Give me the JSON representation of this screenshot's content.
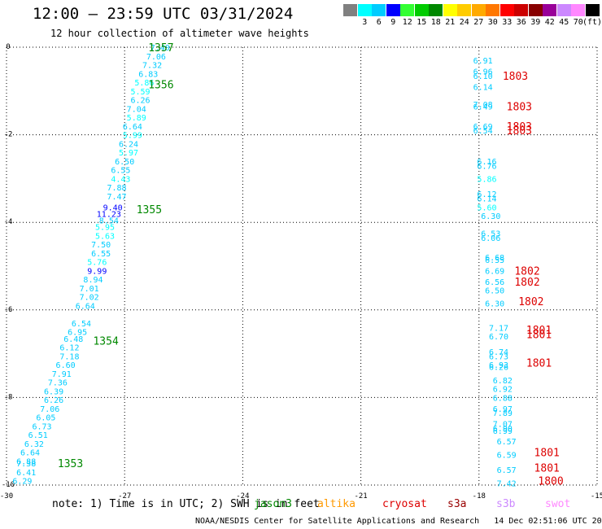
{
  "header": {
    "title": "12:00 – 23:59 UTC 03/31/2024",
    "subtitle": "12 hour collection of altimeter wave heights"
  },
  "color_scale": {
    "labels": [
      "3",
      "6",
      "9",
      "12",
      "15",
      "18",
      "21",
      "24",
      "27",
      "30",
      "33",
      "36",
      "39",
      "42",
      "45",
      "70"
    ],
    "unit": "(ft)",
    "colors": [
      "#808080",
      "#00ffff",
      "#00ccff",
      "#0000ff",
      "#33ff33",
      "#00cc00",
      "#008800",
      "#ffff00",
      "#ffcc00",
      "#ffaa00",
      "#ff7700",
      "#ff0000",
      "#cc0000",
      "#880000",
      "#990099",
      "#cc88ff",
      "#ff88ff",
      "#000000"
    ]
  },
  "axes": {
    "x_ticks": [
      "-30",
      "-27",
      "-24",
      "-21",
      "-18",
      "-15"
    ],
    "y_ticks": [
      "0",
      "-2",
      "-4",
      "-6",
      "-8",
      "-10"
    ]
  },
  "chart_data": {
    "type": "scatter",
    "x_range": [
      -30,
      -15
    ],
    "y_range": [
      -10,
      0
    ],
    "tracks": [
      {
        "satellite": "jason3",
        "color": "#008800",
        "time_labels": [
          {
            "text": "1357",
            "x": -26.4,
            "y": 0
          },
          {
            "text": "1356",
            "x": -26.4,
            "y": -0.85
          },
          {
            "text": "1355",
            "x": -26.7,
            "y": -3.7
          },
          {
            "text": "1354",
            "x": -27.8,
            "y": -6.7
          },
          {
            "text": "1353",
            "x": -28.7,
            "y": -9.5
          }
        ],
        "points": [
          {
            "v": "7.40",
            "x": -26.1,
            "y": 0.0
          },
          {
            "v": "7.06",
            "x": -26.2,
            "y": -0.2
          },
          {
            "v": "7.32",
            "x": -26.3,
            "y": -0.4
          },
          {
            "v": "6.83",
            "x": -26.4,
            "y": -0.6
          },
          {
            "v": "5.86",
            "x": -26.5,
            "y": -0.8
          },
          {
            "v": "5.59",
            "x": -26.6,
            "y": -1.0
          },
          {
            "v": "6.26",
            "x": -26.6,
            "y": -1.2
          },
          {
            "v": "7.04",
            "x": -26.7,
            "y": -1.4
          },
          {
            "v": "5.89",
            "x": -26.7,
            "y": -1.6
          },
          {
            "v": "6.64",
            "x": -26.8,
            "y": -1.8
          },
          {
            "v": "5.99",
            "x": -26.8,
            "y": -2.0
          },
          {
            "v": "6.24",
            "x": -26.9,
            "y": -2.2
          },
          {
            "v": "5.97",
            "x": -26.9,
            "y": -2.4
          },
          {
            "v": "6.50",
            "x": -27.0,
            "y": -2.6
          },
          {
            "v": "6.55",
            "x": -27.1,
            "y": -2.8
          },
          {
            "v": "4.43",
            "x": -27.1,
            "y": -3.0
          },
          {
            "v": "7.88",
            "x": -27.2,
            "y": -3.2
          },
          {
            "v": "7.47",
            "x": -27.2,
            "y": -3.4
          },
          {
            "v": "9.40",
            "x": -27.3,
            "y": -3.65
          },
          {
            "v": "11.23",
            "x": -27.4,
            "y": -3.8
          },
          {
            "v": "8.54",
            "x": -27.4,
            "y": -3.95
          },
          {
            "v": "5.95",
            "x": -27.5,
            "y": -4.1
          },
          {
            "v": "5.63",
            "x": -27.5,
            "y": -4.3
          },
          {
            "v": "7.50",
            "x": -27.6,
            "y": -4.5
          },
          {
            "v": "6.55",
            "x": -27.6,
            "y": -4.7
          },
          {
            "v": "5.76",
            "x": -27.7,
            "y": -4.9
          },
          {
            "v": "9.99",
            "x": -27.7,
            "y": -5.1
          },
          {
            "v": "8.94",
            "x": -27.8,
            "y": -5.3
          },
          {
            "v": "7.01",
            "x": -27.9,
            "y": -5.5
          },
          {
            "v": "7.02",
            "x": -27.9,
            "y": -5.7
          },
          {
            "v": "6.64",
            "x": -28.0,
            "y": -5.9
          },
          {
            "v": "6.54",
            "x": -28.1,
            "y": -6.3
          },
          {
            "v": "6.95",
            "x": -28.2,
            "y": -6.5
          },
          {
            "v": "6.48",
            "x": -28.3,
            "y": -6.65
          },
          {
            "v": "6.12",
            "x": -28.4,
            "y": -6.85
          },
          {
            "v": "7.18",
            "x": -28.4,
            "y": -7.05
          },
          {
            "v": "6.60",
            "x": -28.5,
            "y": -7.25
          },
          {
            "v": "7.91",
            "x": -28.6,
            "y": -7.45
          },
          {
            "v": "7.36",
            "x": -28.7,
            "y": -7.65
          },
          {
            "v": "6.39",
            "x": -28.8,
            "y": -7.85
          },
          {
            "v": "6.26",
            "x": -28.8,
            "y": -8.05
          },
          {
            "v": "7.06",
            "x": -28.9,
            "y": -8.25
          },
          {
            "v": "6.05",
            "x": -29.0,
            "y": -8.45
          },
          {
            "v": "6.73",
            "x": -29.1,
            "y": -8.65
          },
          {
            "v": "6.51",
            "x": -29.2,
            "y": -8.85
          },
          {
            "v": "6.32",
            "x": -29.3,
            "y": -9.05
          },
          {
            "v": "6.64",
            "x": -29.4,
            "y": -9.25
          },
          {
            "v": "6.88",
            "x": -29.5,
            "y": -9.45
          },
          {
            "v": "7.38",
            "x": -29.5,
            "y": -9.5
          },
          {
            "v": "6.41",
            "x": -29.5,
            "y": -9.7
          },
          {
            "v": "6.29",
            "x": -29.6,
            "y": -9.9
          }
        ]
      },
      {
        "satellite": "cryosat",
        "color": "#dd0000",
        "time_labels": [
          {
            "text": "1803",
            "x": -17.4,
            "y": -0.65
          },
          {
            "text": "1803",
            "x": -17.3,
            "y": -1.35
          },
          {
            "text": "1803",
            "x": -17.3,
            "y": -1.8
          },
          {
            "text": "1803",
            "x": -17.3,
            "y": -1.9
          },
          {
            "text": "1802",
            "x": -17.1,
            "y": -5.1
          },
          {
            "text": "1802",
            "x": -17.1,
            "y": -5.35
          },
          {
            "text": "1802",
            "x": -17.0,
            "y": -5.8
          },
          {
            "text": "1801",
            "x": -16.8,
            "y": -6.45
          },
          {
            "text": "1801",
            "x": -16.8,
            "y": -6.55
          },
          {
            "text": "1801",
            "x": -16.8,
            "y": -7.2
          },
          {
            "text": "1801",
            "x": -16.6,
            "y": -9.25
          },
          {
            "text": "1801",
            "x": -16.6,
            "y": -9.6
          },
          {
            "text": "1800",
            "x": -16.5,
            "y": -9.9
          }
        ],
        "points": [
          {
            "v": "6.91",
            "x": -17.9,
            "y": -0.3
          },
          {
            "v": "6.96",
            "x": -17.9,
            "y": -0.55
          },
          {
            "v": "6.10",
            "x": -17.9,
            "y": -0.65
          },
          {
            "v": "6.14",
            "x": -17.9,
            "y": -0.9
          },
          {
            "v": "7.08",
            "x": -17.9,
            "y": -1.3
          },
          {
            "v": "6.49",
            "x": -17.9,
            "y": -1.35
          },
          {
            "v": "6.69",
            "x": -17.9,
            "y": -1.8
          },
          {
            "v": "6.54",
            "x": -17.9,
            "y": -1.9
          },
          {
            "v": "6.16",
            "x": -17.8,
            "y": -2.6
          },
          {
            "v": "6.76",
            "x": -17.8,
            "y": -2.7
          },
          {
            "v": "5.86",
            "x": -17.8,
            "y": -3.0
          },
          {
            "v": "6.12",
            "x": -17.8,
            "y": -3.35
          },
          {
            "v": "6.14",
            "x": -17.8,
            "y": -3.45
          },
          {
            "v": "5.60",
            "x": -17.8,
            "y": -3.65
          },
          {
            "v": "6.30",
            "x": -17.7,
            "y": -3.85
          },
          {
            "v": "6.53",
            "x": -17.7,
            "y": -4.25
          },
          {
            "v": "6.06",
            "x": -17.7,
            "y": -4.35
          },
          {
            "v": "6.68",
            "x": -17.6,
            "y": -4.8
          },
          {
            "v": "6.55",
            "x": -17.6,
            "y": -4.85
          },
          {
            "v": "6.69",
            "x": -17.6,
            "y": -5.1
          },
          {
            "v": "6.56",
            "x": -17.6,
            "y": -5.35
          },
          {
            "v": "6.50",
            "x": -17.6,
            "y": -5.55
          },
          {
            "v": "6.30",
            "x": -17.6,
            "y": -5.85
          },
          {
            "v": "7.17",
            "x": -17.5,
            "y": -6.4
          },
          {
            "v": "6.70",
            "x": -17.5,
            "y": -6.6
          },
          {
            "v": "6.74",
            "x": -17.5,
            "y": -6.95
          },
          {
            "v": "6.73",
            "x": -17.5,
            "y": -7.05
          },
          {
            "v": "6.93",
            "x": -17.5,
            "y": -7.25
          },
          {
            "v": "6.26",
            "x": -17.5,
            "y": -7.3
          },
          {
            "v": "6.82",
            "x": -17.4,
            "y": -7.6
          },
          {
            "v": "6.92",
            "x": -17.4,
            "y": -7.8
          },
          {
            "v": "6.88",
            "x": -17.4,
            "y": -8.0
          },
          {
            "v": "6.97",
            "x": -17.4,
            "y": -8.25
          },
          {
            "v": "7.89",
            "x": -17.4,
            "y": -8.35
          },
          {
            "v": "7.07",
            "x": -17.4,
            "y": -8.6
          },
          {
            "v": "6.90",
            "x": -17.4,
            "y": -8.7
          },
          {
            "v": "6.99",
            "x": -17.4,
            "y": -8.75
          },
          {
            "v": "6.57",
            "x": -17.3,
            "y": -9.0
          },
          {
            "v": "6.59",
            "x": -17.3,
            "y": -9.3
          },
          {
            "v": "6.57",
            "x": -17.3,
            "y": -9.65
          },
          {
            "v": "7.42",
            "x": -17.3,
            "y": -9.95
          }
        ]
      }
    ]
  },
  "note": "note: 1) Time is in UTC; 2) SWH is in feet",
  "legend": [
    {
      "label": "jason3",
      "color": "#008800"
    },
    {
      "label": "altika",
      "color": "#ff9900"
    },
    {
      "label": "cryosat",
      "color": "#dd0000"
    },
    {
      "label": "s3a",
      "color": "#990000"
    },
    {
      "label": "s3b",
      "color": "#cc88ff"
    },
    {
      "label": "swot",
      "color": "#ff88ff"
    }
  ],
  "footer": "NOAA/NESDIS Center for Satellite Applications and Research   14 Dec 02:51:06 UTC 2024"
}
